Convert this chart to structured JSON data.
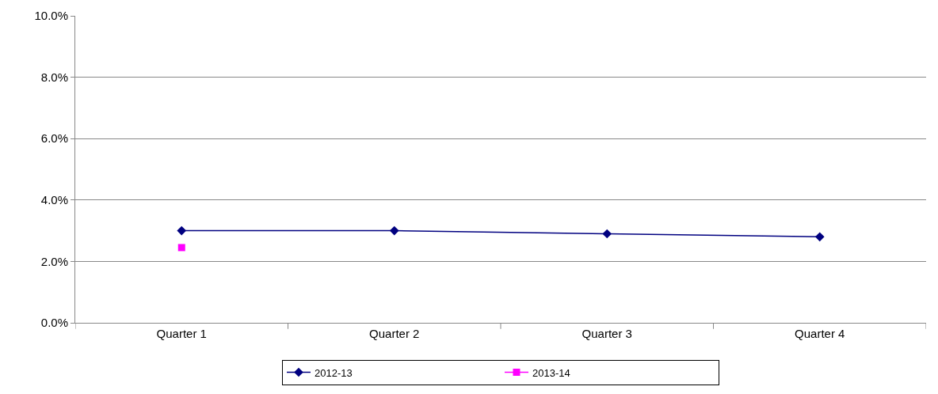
{
  "chart_data": {
    "type": "line",
    "categories": [
      "Quarter 1",
      "Quarter 2",
      "Quarter 3",
      "Quarter 4"
    ],
    "series": [
      {
        "name": "2012-13",
        "color": "#000080",
        "values": [
          3.0,
          3.0,
          2.9,
          2.8
        ],
        "marker": "diamond"
      },
      {
        "name": "2013-14",
        "color": "#ff00ff",
        "values": [
          2.45,
          null,
          null,
          null
        ],
        "marker": "square"
      }
    ],
    "ylim": [
      0,
      10
    ],
    "yticks": [
      {
        "value": 0,
        "label": "0.0%"
      },
      {
        "value": 2,
        "label": "2.0%"
      },
      {
        "value": 4,
        "label": "4.0%"
      },
      {
        "value": 6,
        "label": "6.0%"
      },
      {
        "value": 8,
        "label": "8.0%"
      },
      {
        "value": 10,
        "label": "10.0%"
      }
    ],
    "grid": "y",
    "legend": "bottom",
    "line_style": "solid"
  }
}
